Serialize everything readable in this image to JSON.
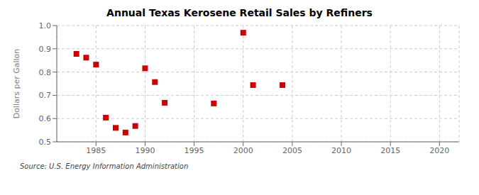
{
  "chart_data": {
    "type": "scatter",
    "title": "Annual Texas Kerosene Retail Sales by Refiners",
    "ylabel": "Dollars per Gallon",
    "annotations": [
      "Source: U.S. Energy Information Administration"
    ],
    "x": [
      1983,
      1984,
      1985,
      1986,
      1987,
      1988,
      1989,
      1990,
      1991,
      1992,
      1997,
      2000,
      2001,
      2004
    ],
    "values": [
      0.878,
      0.862,
      0.832,
      0.604,
      0.56,
      0.54,
      0.568,
      0.816,
      0.757,
      0.668,
      0.665,
      0.969,
      0.744,
      0.744
    ],
    "color": "#cc0000",
    "marker": "square",
    "xlim": [
      1981,
      2022
    ],
    "ylim": [
      0.5,
      1.0
    ],
    "xticks": [
      1985,
      1990,
      1995,
      2000,
      2005,
      2010,
      2015,
      2020
    ],
    "yticks": [
      0.5,
      0.6,
      0.7,
      0.8,
      0.9,
      {
        "value": 1.0,
        "label": "1.0"
      }
    ],
    "grid": true
  }
}
